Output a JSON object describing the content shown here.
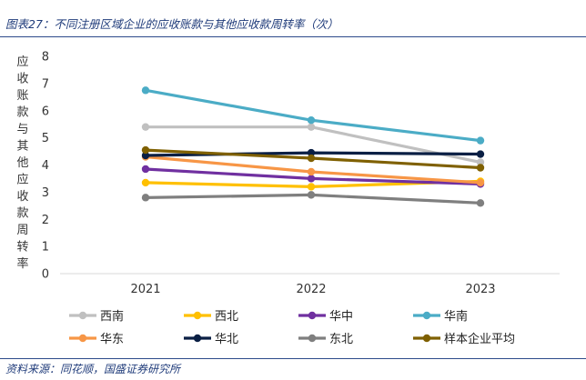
{
  "header": {
    "title": "图表27：不同注册区域企业的应收账款与其他应收款周转率（次）"
  },
  "footer": {
    "source": "资料来源：同花顺，国盛证券研究所"
  },
  "chart_data": {
    "type": "line",
    "title": "",
    "xlabel": "",
    "ylabel": "应收账款与其他应收款周转率",
    "x": [
      "2021",
      "2022",
      "2023"
    ],
    "ylim": [
      0,
      8
    ],
    "yticks": [
      0,
      1,
      2,
      3,
      4,
      5,
      6,
      7,
      8
    ],
    "grid": false,
    "legend_position": "bottom",
    "series": [
      {
        "name": "西南",
        "color": "#c0c0c0",
        "values": [
          5.4,
          5.4,
          4.1
        ]
      },
      {
        "name": "西北",
        "color": "#ffc000",
        "values": [
          3.35,
          3.2,
          3.4
        ]
      },
      {
        "name": "华中",
        "color": "#7030a0",
        "values": [
          3.85,
          3.5,
          3.3
        ]
      },
      {
        "name": "华南",
        "color": "#4bacc6",
        "values": [
          6.75,
          5.65,
          4.9
        ]
      },
      {
        "name": "华东",
        "color": "#f79646",
        "values": [
          4.3,
          3.75,
          3.35
        ]
      },
      {
        "name": "华北",
        "color": "#0a1f44",
        "values": [
          4.35,
          4.45,
          4.4
        ]
      },
      {
        "name": "东北",
        "color": "#7f7f7f",
        "values": [
          2.8,
          2.9,
          2.6
        ]
      },
      {
        "name": "样本企业平均",
        "color": "#7f6000",
        "values": [
          4.55,
          4.25,
          3.9
        ]
      }
    ]
  }
}
